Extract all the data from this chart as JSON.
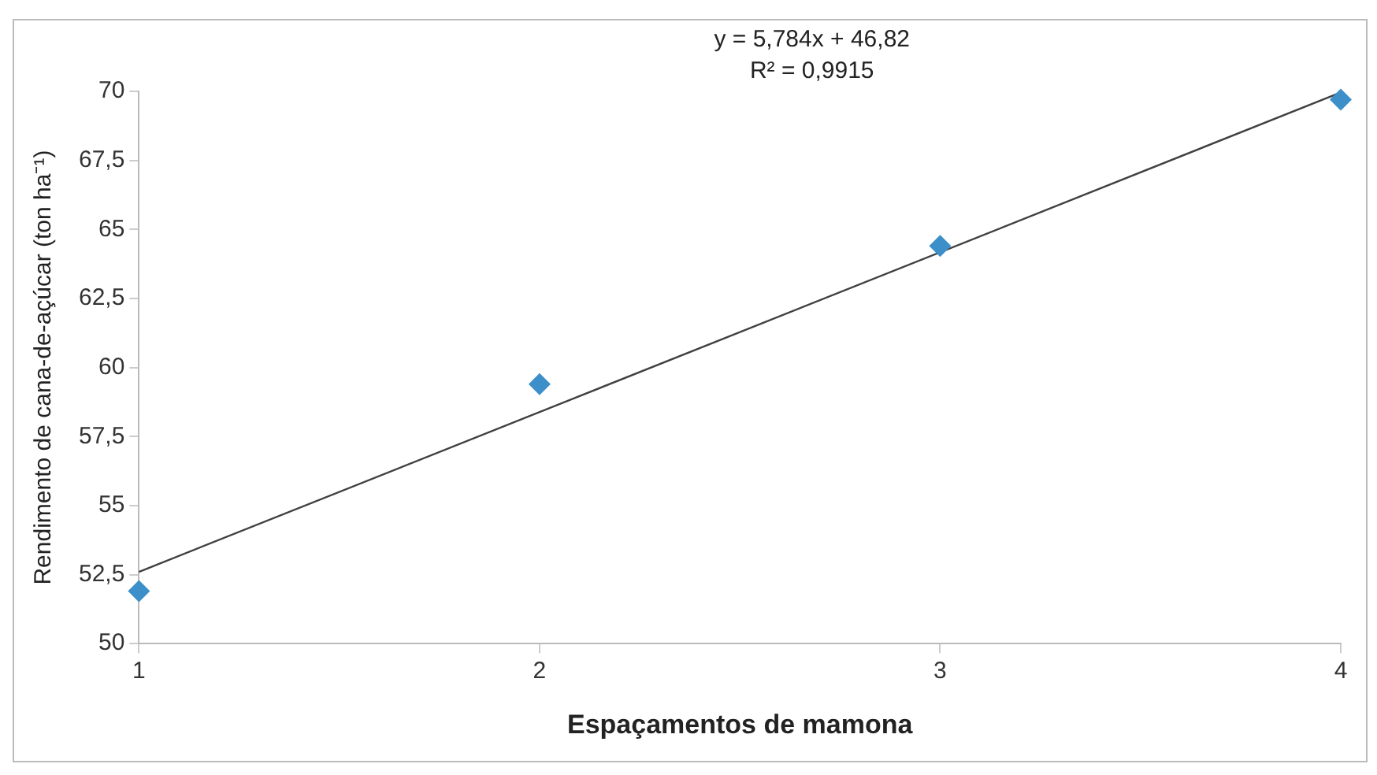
{
  "chart_data": {
    "type": "scatter",
    "xlabel": "Espaçamentos de mamona",
    "ylabel": "Rendimento de cana-de-açúcar (ton ha⁻¹)",
    "x": [
      1,
      2,
      3,
      4
    ],
    "series": [
      {
        "color": "#3c8fc8",
        "marker": "diamond",
        "values": [
          51.9,
          59.4,
          64.4,
          69.7
        ]
      },
      {
        "type": "line",
        "color": "#404040",
        "marker": "none",
        "x": [
          1,
          4
        ],
        "values": [
          52.6,
          69.96
        ]
      }
    ],
    "annotations": [
      "y = 5,784x + 46,82",
      "R² = 0,9915"
    ],
    "xlim": [
      1,
      4
    ],
    "xticks": [
      1,
      2,
      3,
      4
    ],
    "ylim": [
      50,
      70
    ],
    "yticks": [
      50,
      {
        "value": 52.5,
        "label": "52,5"
      },
      55,
      {
        "value": 57.5,
        "label": "57,5"
      },
      60,
      {
        "value": 62.5,
        "label": "62,5"
      },
      65,
      {
        "value": 67.5,
        "label": "67,5"
      },
      70
    ],
    "grid": false,
    "legend": false
  }
}
